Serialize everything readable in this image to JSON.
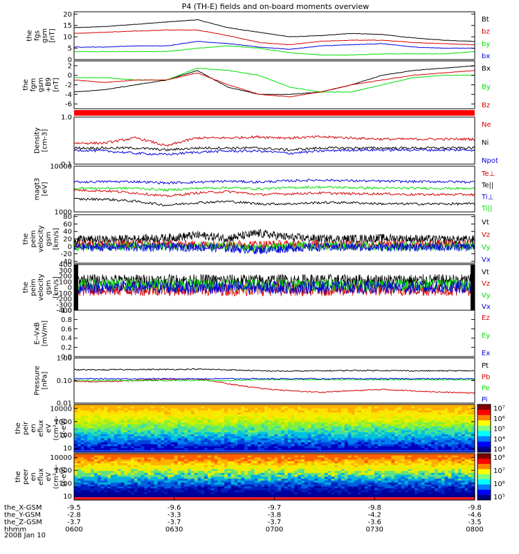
{
  "title": "P4 (TH-E) fields and on-board moments overview",
  "date_label": "2008 Jan 10",
  "orbit_rows": [
    {
      "label": "the_X-GSM",
      "values": [
        "-9.5",
        "-9.6",
        "-9.7",
        "-9.8",
        "-9.8"
      ]
    },
    {
      "label": "the_Y-GSM",
      "values": [
        "-2.8",
        "-3.3",
        "-3.8",
        "-4.2",
        "-4.6"
      ]
    },
    {
      "label": "the_Z-GSM",
      "values": [
        "-3.7",
        "-3.7",
        "-3.7",
        "-3.6",
        "-3.5"
      ]
    },
    {
      "label": "hhmm",
      "values": [
        "0600",
        "0630",
        "0700",
        "0730",
        "0800"
      ]
    }
  ],
  "colors": {
    "black": "#000000",
    "red": "#d40000",
    "green": "#00dd00",
    "blue": "#0000dd"
  },
  "chart_data": [
    {
      "type": "line",
      "ylabel_lines": [
        "the",
        "fgs",
        "gsm",
        "[nT]"
      ],
      "yticks": [
        "20",
        "15",
        "10",
        "5",
        "0"
      ],
      "ylim": [
        0,
        21
      ],
      "series": [
        {
          "name": "Bt",
          "color": "black",
          "values": [
            14,
            14.5,
            15.5,
            16.5,
            17.5,
            14,
            12,
            10,
            10.5,
            11.5,
            11,
            9.5,
            8.5,
            8
          ]
        },
        {
          "name": "bz",
          "color": "red",
          "values": [
            11.5,
            12,
            12.5,
            13,
            13,
            10.5,
            7.5,
            6.5,
            8,
            8.5,
            8.5,
            7.5,
            7,
            6.5
          ]
        },
        {
          "name": "by",
          "color": "green",
          "values": [
            3.5,
            3.5,
            3.5,
            3.5,
            5,
            6,
            5,
            3,
            2,
            2,
            2.5,
            2.5,
            2.5,
            3.5
          ]
        },
        {
          "name": "bx",
          "color": "blue",
          "values": [
            5.5,
            5.5,
            6,
            6,
            8,
            7,
            5.5,
            4.5,
            6,
            6.5,
            7,
            5.5,
            5,
            5
          ]
        }
      ]
    },
    {
      "type": "line",
      "ylabel_lines": [
        "the",
        "fgm",
        "gsm",
        "+B9",
        "[nT]"
      ],
      "yticks": [
        "2",
        "0",
        "-2",
        "-4",
        "-6"
      ],
      "ylim": [
        -7,
        3
      ],
      "series": [
        {
          "name": "Bx",
          "color": "black",
          "values": [
            -3.5,
            -3,
            -2,
            -1,
            1,
            -2.5,
            -4,
            -4,
            -3.5,
            -2,
            0,
            1,
            1.5,
            2
          ]
        },
        {
          "name": "By",
          "color": "green",
          "values": [
            -0.5,
            -0.5,
            -1,
            -1,
            1.5,
            1,
            0,
            -2.5,
            -3.5,
            -3.5,
            -2,
            -0.5,
            0,
            0
          ]
        },
        {
          "name": "Bz",
          "color": "red",
          "values": [
            -1,
            -1.5,
            -1,
            -1,
            0.5,
            -2,
            -4,
            -4.5,
            -3.5,
            -2,
            -1,
            0,
            0.5,
            1
          ]
        }
      ]
    },
    {
      "type": "line",
      "ylabel_lines": [
        "Density",
        "[cm-3]"
      ],
      "yticks": [
        "1.0",
        "0.1"
      ],
      "ylim": [
        0.1,
        1.0
      ],
      "yscale": "log",
      "series": [
        {
          "name": "Ne",
          "color": "red",
          "values": [
            0.28,
            0.28,
            0.36,
            0.24,
            0.36,
            0.36,
            0.38,
            0.36,
            0.38,
            0.36,
            0.34,
            0.34,
            0.34,
            0.34
          ]
        },
        {
          "name": "Ni",
          "color": "black",
          "values": [
            0.22,
            0.22,
            0.22,
            0.2,
            0.22,
            0.22,
            0.22,
            0.2,
            0.22,
            0.22,
            0.22,
            0.22,
            0.22,
            0.22
          ]
        },
        {
          "name": "Npot",
          "color": "blue",
          "values": [
            0.2,
            0.19,
            0.17,
            0.16,
            0.18,
            0.19,
            0.19,
            0.17,
            0.19,
            0.2,
            0.2,
            0.2,
            0.2,
            0.2
          ]
        }
      ]
    },
    {
      "type": "line",
      "ylabel_lines": [
        "magt3",
        "[eV]"
      ],
      "yticks": [
        "10000",
        "1000"
      ],
      "ylim": [
        1000,
        10000
      ],
      "yscale": "log",
      "series": [
        {
          "name": "Te⊥",
          "color": "red",
          "values": [
            3000,
            2900,
            2600,
            2200,
            2600,
            2800,
            2400,
            2500,
            2600,
            2500,
            2500,
            2400,
            2400,
            2400
          ]
        },
        {
          "name": "Te||",
          "color": "black",
          "values": [
            1900,
            1900,
            1700,
            1400,
            1600,
            1700,
            1500,
            1500,
            1600,
            1600,
            1500,
            1500,
            1500,
            1500
          ]
        },
        {
          "name": "Ti⊥",
          "color": "blue",
          "values": [
            4500,
            4600,
            4600,
            4300,
            4500,
            4700,
            4500,
            4800,
            5000,
            4800,
            4700,
            4600,
            4600,
            4500
          ]
        },
        {
          "name": "Ti||",
          "color": "green",
          "values": [
            3300,
            3300,
            3300,
            3000,
            3300,
            3400,
            3200,
            3400,
            3500,
            3400,
            3300,
            3300,
            3300,
            3200
          ]
        }
      ]
    },
    {
      "type": "line",
      "ylabel_lines": [
        "the",
        "peim",
        "velocity",
        "gsm",
        "[km/s]"
      ],
      "yticks": [
        "80",
        "60",
        "40",
        "20",
        "0",
        "-20",
        "-40"
      ],
      "ylim": [
        -45,
        85
      ],
      "noisy": true,
      "series": [
        {
          "name": "Vt",
          "color": "black",
          "values": [
            18,
            18,
            20,
            22,
            30,
            22,
            35,
            24,
            20,
            20,
            22,
            20,
            18,
            18
          ]
        },
        {
          "name": "Vz",
          "color": "red",
          "values": [
            5,
            5,
            5,
            5,
            5,
            5,
            5,
            5,
            5,
            5,
            5,
            5,
            5,
            5
          ]
        },
        {
          "name": "Vy",
          "color": "green",
          "values": [
            0,
            0,
            0,
            0,
            0,
            0,
            -5,
            0,
            0,
            0,
            0,
            0,
            0,
            0
          ]
        },
        {
          "name": "Vx",
          "color": "blue",
          "values": [
            -2,
            -2,
            -2,
            -2,
            -2,
            -5,
            -10,
            -5,
            -2,
            -2,
            -2,
            -2,
            -2,
            -2
          ]
        }
      ]
    },
    {
      "type": "line",
      "ylabel_lines": [
        "the",
        "peim",
        "velocity",
        "gsm",
        "[km/s]"
      ],
      "yticks": [
        "400",
        "300",
        "200",
        "100",
        "0",
        "-100",
        "-200",
        "-300",
        "-400"
      ],
      "ylim": [
        -400,
        400
      ],
      "noisy": true,
      "series": [
        {
          "name": "Vt",
          "color": "black",
          "values": [
            120,
            120,
            120,
            120,
            120,
            120,
            120,
            120,
            120,
            120,
            120,
            120,
            120,
            120
          ]
        },
        {
          "name": "Vz",
          "color": "red",
          "values": [
            -40,
            -40,
            -40,
            -40,
            -40,
            -40,
            -40,
            -40,
            -40,
            -40,
            -40,
            -40,
            -40,
            -40
          ]
        },
        {
          "name": "Vy",
          "color": "green",
          "values": [
            40,
            40,
            40,
            40,
            40,
            40,
            40,
            40,
            40,
            40,
            40,
            40,
            40,
            40
          ]
        },
        {
          "name": "Vx",
          "color": "blue",
          "values": [
            0,
            0,
            0,
            0,
            0,
            0,
            0,
            0,
            0,
            0,
            0,
            0,
            0,
            0
          ]
        }
      ]
    },
    {
      "type": "line",
      "ylabel_lines": [
        "E--VxB",
        "[mV/m]"
      ],
      "yticks": [
        "1.0",
        "0.8",
        "0.6",
        "0.4",
        "0.2",
        "0.0"
      ],
      "ylim": [
        0,
        1
      ],
      "series": [
        {
          "name": "Ez",
          "color": "red",
          "values": []
        },
        {
          "name": "Ey",
          "color": "green",
          "values": []
        },
        {
          "name": "Ex",
          "color": "blue",
          "values": []
        }
      ]
    },
    {
      "type": "line",
      "ylabel_lines": [
        "Pressure",
        "[nPa]"
      ],
      "yticks": [
        "1.00",
        "0.10",
        "0.01"
      ],
      "ylim": [
        0.01,
        1.0
      ],
      "yscale": "log",
      "series": [
        {
          "name": "Pt",
          "color": "black",
          "values": [
            0.3,
            0.3,
            0.31,
            0.31,
            0.32,
            0.3,
            0.27,
            0.26,
            0.27,
            0.28,
            0.28,
            0.27,
            0.27,
            0.27
          ]
        },
        {
          "name": "Pb",
          "color": "red",
          "values": [
            0.09,
            0.09,
            0.1,
            0.11,
            0.12,
            0.07,
            0.045,
            0.035,
            0.03,
            0.035,
            0.04,
            0.035,
            0.03,
            0.028
          ]
        },
        {
          "name": "Pe",
          "color": "green",
          "values": [
            0.1,
            0.1,
            0.1,
            0.1,
            0.1,
            0.1,
            0.11,
            0.11,
            0.11,
            0.11,
            0.11,
            0.11,
            0.11,
            0.11
          ]
        },
        {
          "name": "Pi",
          "color": "blue",
          "values": [
            0.12,
            0.12,
            0.12,
            0.12,
            0.12,
            0.12,
            0.12,
            0.12,
            0.12,
            0.12,
            0.12,
            0.12,
            0.12,
            0.12
          ]
        }
      ]
    },
    {
      "type": "heatmap",
      "ylabel_lines": [
        "the",
        "peir",
        "en",
        "eflux",
        "eV",
        "(cm²-s-",
        "sr-eV)"
      ],
      "yticks": [
        "10000",
        "1000",
        "100",
        "10"
      ],
      "ylim": [
        5,
        20000
      ],
      "yscale": "log",
      "colorbar_ticks": [
        "10⁷",
        "10⁶",
        "10⁵",
        "10⁴",
        "10³"
      ]
    },
    {
      "type": "heatmap",
      "ylabel_lines": [
        "the",
        "peer",
        "en",
        "eflux",
        "eV",
        "(cm²-s-",
        "sr-eV)"
      ],
      "yticks": [
        "10000",
        "1000",
        "100",
        "10"
      ],
      "ylim": [
        5,
        20000
      ],
      "yscale": "log",
      "colorbar_ticks": [
        "10⁸",
        "10⁷",
        "10⁶",
        "10⁵"
      ]
    }
  ]
}
